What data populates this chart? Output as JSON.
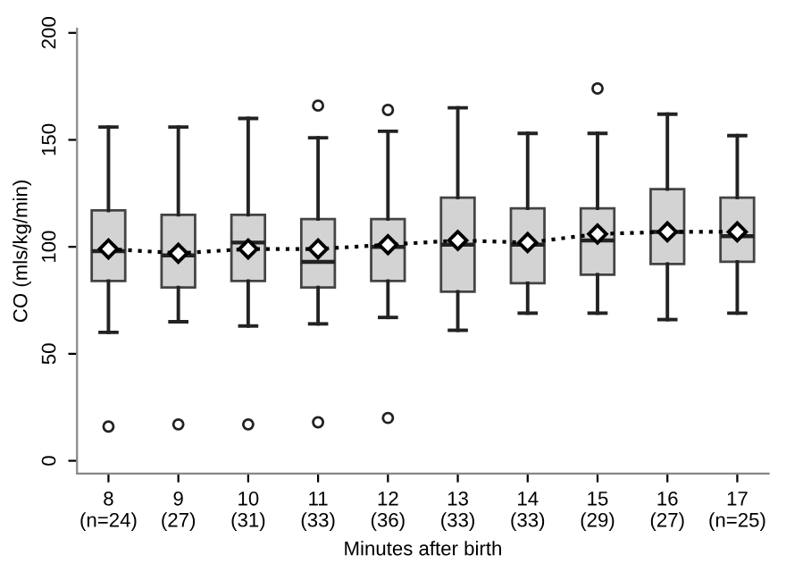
{
  "chart_data": {
    "type": "box",
    "xlabel": "Minutes after birth",
    "ylabel": "CO (mls/kg/min)",
    "categories": [
      "8\n(n=24)",
      "9\n(27)",
      "10\n(31)",
      "11\n(33)",
      "12\n(36)",
      "13\n(33)",
      "14\n(33)",
      "15\n(29)",
      "16\n(27)",
      "17\n(n=25)"
    ],
    "ylim": [
      -6,
      202
    ],
    "yticks": [
      0,
      50,
      100,
      150,
      200
    ],
    "grid": false,
    "series": [
      {
        "color": "#d3d3d3",
        "boxes": [
          {
            "low": 60,
            "q1": 84,
            "median": 98,
            "q3": 117,
            "high": 156,
            "outliers": [
              16
            ]
          },
          {
            "low": 65,
            "q1": 81,
            "median": 96,
            "q3": 115,
            "high": 156,
            "outliers": [
              17
            ]
          },
          {
            "low": 63,
            "q1": 84,
            "median": 102,
            "q3": 115,
            "high": 160,
            "outliers": [
              17
            ]
          },
          {
            "low": 64,
            "q1": 81,
            "median": 93,
            "q3": 113,
            "high": 151,
            "outliers": [
              166,
              18
            ]
          },
          {
            "low": 67,
            "q1": 84,
            "median": 100,
            "q3": 113,
            "high": 154,
            "outliers": [
              164,
              20
            ]
          },
          {
            "low": 61,
            "q1": 79,
            "median": 101,
            "q3": 123,
            "high": 165
          },
          {
            "low": 69,
            "q1": 83,
            "median": 101,
            "q3": 118,
            "high": 153
          },
          {
            "low": 69,
            "q1": 87,
            "median": 103,
            "q3": 118,
            "high": 153,
            "outliers": [
              174
            ]
          },
          {
            "low": 66,
            "q1": 92,
            "median": 107,
            "q3": 127,
            "high": 162
          },
          {
            "low": 69,
            "q1": 93,
            "median": 105,
            "q3": 123,
            "high": 152
          }
        ]
      },
      {
        "type": "line",
        "color": "#000000",
        "line_style": "dotted",
        "marker": "diamond",
        "values": [
          99,
          97,
          99,
          99,
          101,
          103,
          102,
          106,
          107,
          107
        ]
      }
    ]
  }
}
